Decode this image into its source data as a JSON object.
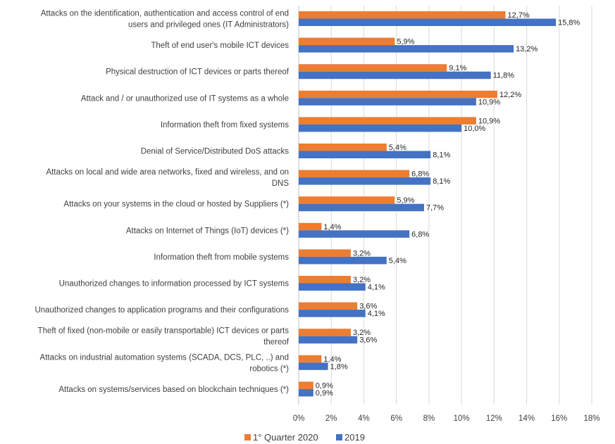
{
  "chart_data": {
    "type": "bar",
    "orientation": "horizontal",
    "title": "",
    "xlabel": "",
    "ylabel": "",
    "xlim": [
      0,
      18
    ],
    "x_ticks": [
      "0%",
      "2%",
      "4%",
      "6%",
      "8%",
      "10%",
      "12%",
      "14%",
      "16%",
      "18%"
    ],
    "grid": true,
    "legend_position": "bottom",
    "categories": [
      [
        "Attacks on the identification, authentication and access control of end",
        "users and privileged ones (IT Administrators)"
      ],
      [
        "Theft of end user's mobile ICT devices"
      ],
      [
        "Physical destruction of ICT devices or parts thereof"
      ],
      [
        "Attack and / or unauthorized use of IT systems as a whole"
      ],
      [
        "Information theft from fixed systems"
      ],
      [
        "Denial of Service/Distributed DoS attacks"
      ],
      [
        "Attacks on local and wide area networks, fixed and wireless, and on",
        "DNS"
      ],
      [
        "Attacks on your systems in the cloud or hosted by Suppliers (*)"
      ],
      [
        "Attacks on Internet of Things (IoT) devices (*)"
      ],
      [
        "Information theft from mobile systems"
      ],
      [
        "Unauthorized changes to information processed by ICT systems"
      ],
      [
        "Unauthorized changes to application programs and their configurations"
      ],
      [
        "Theft of fixed (non-mobile or easily transportable) ICT devices or parts",
        "thereof"
      ],
      [
        "Attacks on industrial automation systems (SCADA, DCS, PLC, ..) and",
        "robotics (*)"
      ],
      [
        "Attacks on systems/services based on blockchain techniques (*)"
      ]
    ],
    "series": [
      {
        "name": "1° Quarter 2020",
        "color": "#ED7D31",
        "values": [
          12.7,
          5.9,
          9.1,
          12.2,
          10.9,
          5.4,
          6.8,
          5.9,
          1.4,
          3.2,
          3.2,
          3.6,
          3.2,
          1.4,
          0.9
        ],
        "labels": [
          "12,7%",
          "5,9%",
          "9,1%",
          "12,2%",
          "10,9%",
          "5,4%",
          "6,8%",
          "5,9%",
          "1,4%",
          "3,2%",
          "3,2%",
          "3,6%",
          "3,2%",
          "1,4%",
          "0,9%"
        ]
      },
      {
        "name": "2019",
        "color": "#4472C4",
        "values": [
          15.8,
          13.2,
          11.8,
          10.9,
          10.0,
          8.1,
          8.1,
          7.7,
          6.8,
          5.4,
          4.1,
          4.1,
          3.6,
          1.8,
          0.9
        ],
        "labels": [
          "15,8%",
          "13,2%",
          "11,8%",
          "10,9%",
          "10,0%",
          "8,1%",
          "8,1%",
          "7,7%",
          "6,8%",
          "5,4%",
          "4,1%",
          "4,1%",
          "3,6%",
          "1,8%",
          "0,9%"
        ]
      }
    ]
  }
}
